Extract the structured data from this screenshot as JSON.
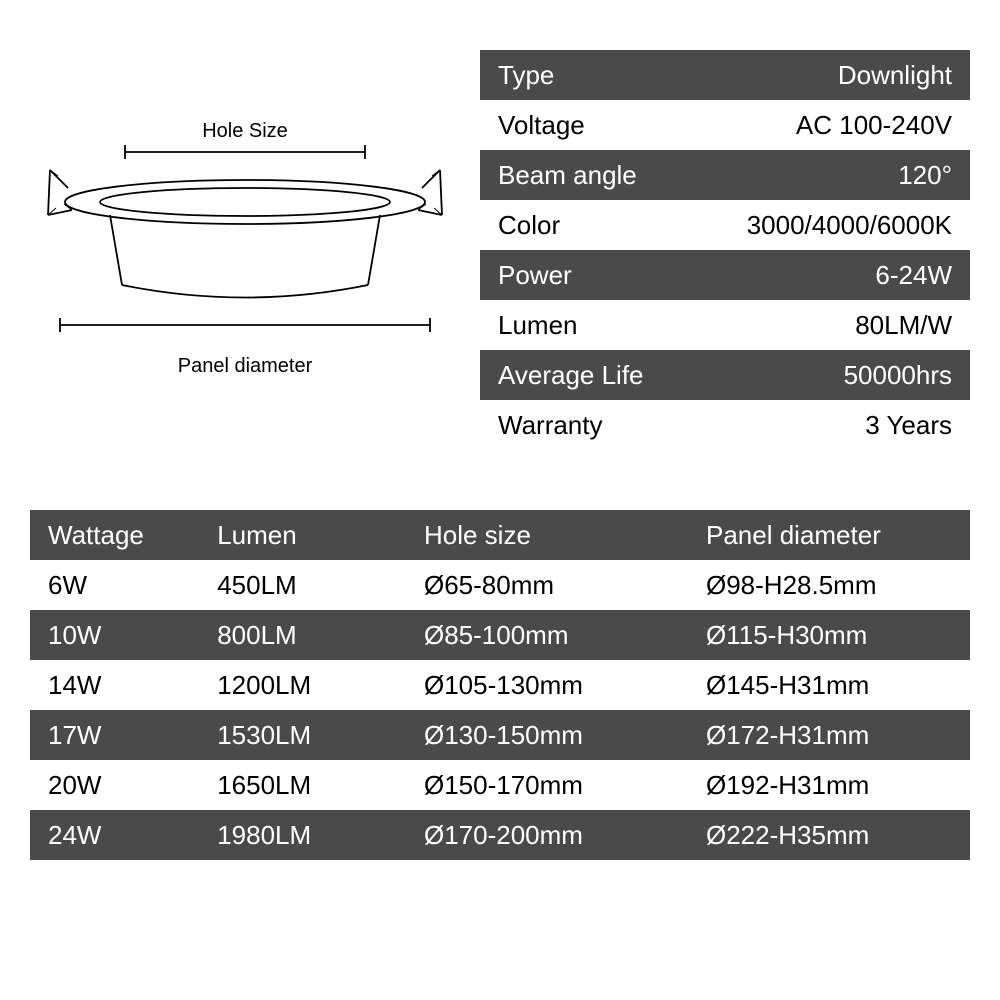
{
  "colors": {
    "dark_row": "#4a4a4a",
    "light_row": "#ffffff",
    "text_dark": "#000000",
    "text_light": "#ffffff"
  },
  "diagram": {
    "hole_size_label": "Hole Size",
    "panel_diameter_label": "Panel diameter"
  },
  "specs": {
    "rows": [
      {
        "label": "Type",
        "value": "Downlight",
        "style": "dark"
      },
      {
        "label": "Voltage",
        "value": "AC 100-240V",
        "style": "light"
      },
      {
        "label": "Beam angle",
        "value": "120°",
        "style": "dark"
      },
      {
        "label": "Color",
        "value": "3000/4000/6000K",
        "style": "light"
      },
      {
        "label": "Power",
        "value": "6-24W",
        "style": "dark"
      },
      {
        "label": "Lumen",
        "value": "80LM/W",
        "style": "light"
      },
      {
        "label": "Average Life",
        "value": "50000hrs",
        "style": "dark"
      },
      {
        "label": "Warranty",
        "value": "3 Years",
        "style": "light"
      }
    ]
  },
  "size_table": {
    "headers": [
      "Wattage",
      "Lumen",
      "Hole size",
      "Panel diameter"
    ],
    "rows": [
      {
        "cells": [
          "6W",
          "450LM",
          "Ø65-80mm",
          "Ø98-H28.5mm"
        ],
        "style": "light"
      },
      {
        "cells": [
          "10W",
          "800LM",
          "Ø85-100mm",
          "Ø115-H30mm"
        ],
        "style": "dark"
      },
      {
        "cells": [
          "14W",
          "1200LM",
          "Ø105-130mm",
          "Ø145-H31mm"
        ],
        "style": "light"
      },
      {
        "cells": [
          "17W",
          "1530LM",
          "Ø130-150mm",
          "Ø172-H31mm"
        ],
        "style": "dark"
      },
      {
        "cells": [
          "20W",
          "1650LM",
          "Ø150-170mm",
          "Ø192-H31mm"
        ],
        "style": "light"
      },
      {
        "cells": [
          "24W",
          "1980LM",
          "Ø170-200mm",
          "Ø222-H35mm"
        ],
        "style": "dark"
      }
    ]
  },
  "typography": {
    "body_fontsize": 26,
    "label_fontsize": 20
  }
}
